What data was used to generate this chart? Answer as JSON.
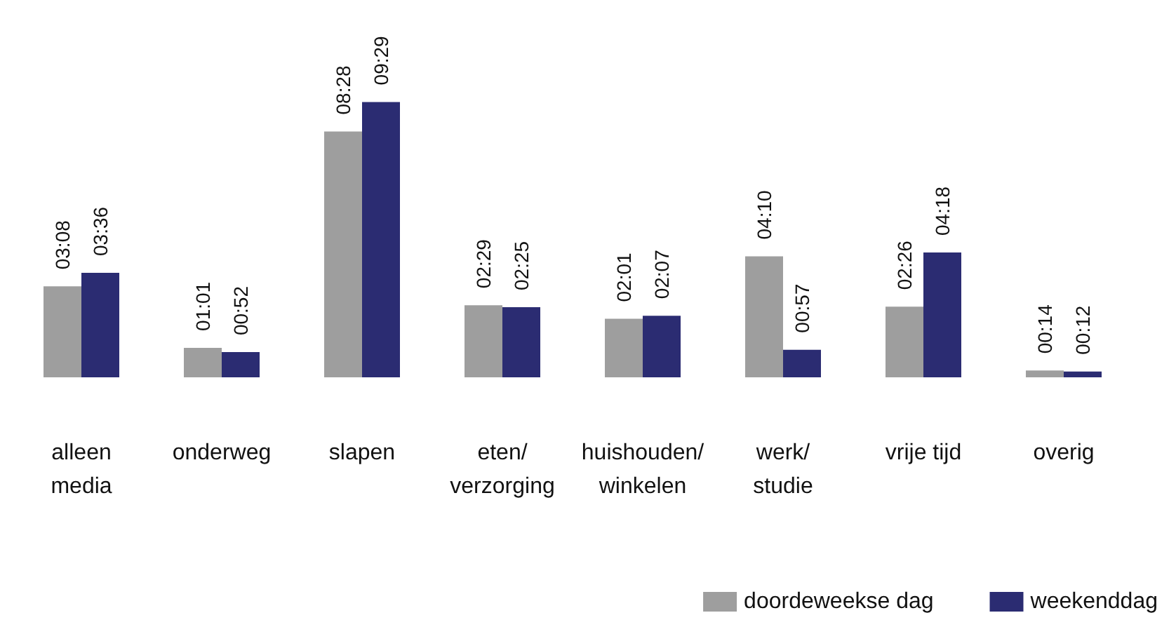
{
  "chart_data": {
    "type": "bar",
    "categories": [
      "alleen\nmedia",
      "onderweg",
      "slapen",
      "eten/\nverzorging",
      "huishouden/\nwinkelen",
      "werk/\nstudie",
      "vrije tijd",
      "overig"
    ],
    "series": [
      {
        "name": "doordeweekse dag",
        "color": "#9e9e9e",
        "values": [
          188,
          61,
          508,
          149,
          121,
          250,
          146,
          14
        ],
        "value_labels": [
          "03:08",
          "01:01",
          "08:28",
          "02:29",
          "02:01",
          "04:10",
          "02:26",
          "00:14"
        ]
      },
      {
        "name": "weekenddag",
        "color": "#2b2c72",
        "values": [
          216,
          52,
          569,
          145,
          127,
          57,
          258,
          12
        ],
        "value_labels": [
          "03:36",
          "00:52",
          "09:29",
          "02:25",
          "02:07",
          "00:57",
          "04:18",
          "00:12"
        ]
      }
    ],
    "legend": "bottom right",
    "grid": false
  }
}
